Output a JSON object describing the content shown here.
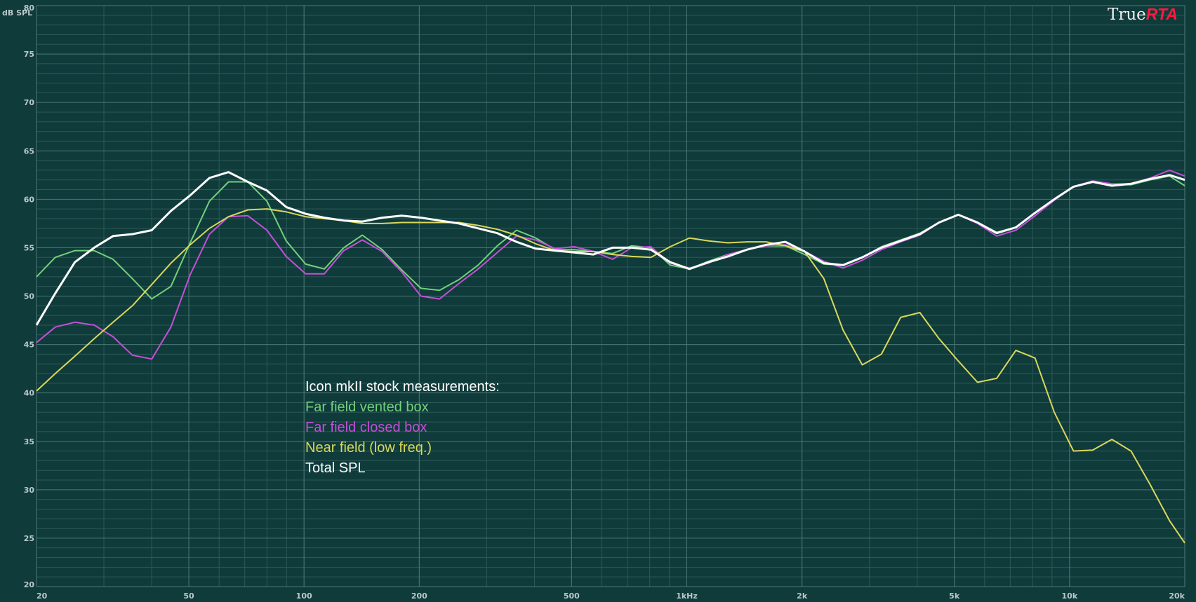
{
  "brand": {
    "prefix": "True",
    "suffix": "RTA",
    "suffix_color": "#ff1a3c"
  },
  "chart_data": {
    "type": "line",
    "xscale": "log",
    "xlim": [
      20,
      20000
    ],
    "ylim": [
      20,
      80
    ],
    "ylabel": "dB SPL",
    "x_ticks": [
      {
        "value": 20,
        "label": "20"
      },
      {
        "value": 50,
        "label": "50"
      },
      {
        "value": 100,
        "label": "100"
      },
      {
        "value": 200,
        "label": "200"
      },
      {
        "value": 500,
        "label": "500"
      },
      {
        "value": 1000,
        "label": "1kHz"
      },
      {
        "value": 2000,
        "label": "2k"
      },
      {
        "value": 5000,
        "label": "5k"
      },
      {
        "value": 10000,
        "label": "10k"
      },
      {
        "value": 20000,
        "label": "20k"
      }
    ],
    "y_ticks": [
      20,
      25,
      30,
      35,
      40,
      45,
      50,
      55,
      60,
      65,
      70,
      75,
      80
    ],
    "grid": true,
    "legend_title": "Icon mkII stock measurements:",
    "series": [
      {
        "name": "Far field vented box",
        "color": "#72d07a",
        "x": [
          20,
          22.4,
          25.2,
          28.3,
          31.7,
          35.6,
          40,
          44.9,
          50.4,
          56.6,
          63.5,
          71.3,
          80,
          89.8,
          101,
          113,
          127,
          142,
          160,
          180,
          202,
          226,
          254,
          285,
          320,
          359,
          403,
          453,
          508,
          570,
          640,
          718,
          806,
          905,
          1016,
          1140,
          1280,
          1437,
          1613,
          1810,
          2032,
          2281,
          2560,
          2873,
          3225,
          3620,
          4064,
          4561,
          5120,
          5747,
          6451,
          7241,
          8127,
          9123,
          10240,
          11494,
          12902,
          14482,
          16256,
          18246,
          20000
        ],
        "y": [
          52,
          54,
          54.7,
          54.7,
          53.8,
          51.8,
          49.7,
          51,
          55.5,
          59.8,
          61.8,
          61.8,
          59.8,
          55.7,
          53.3,
          52.8,
          55,
          56.3,
          54.8,
          52.7,
          50.8,
          50.6,
          51.7,
          53.2,
          55.2,
          56.8,
          56,
          54.8,
          54.8,
          54.6,
          54.4,
          55.2,
          55,
          53.2,
          52.8,
          53.6,
          54.3,
          54.8,
          55.2,
          55.2,
          54.3,
          53.3,
          53.2,
          54,
          55.1,
          55.8,
          56.5,
          57.6,
          58.4,
          57.6,
          56.6,
          57.1,
          58.6,
          60,
          61.3,
          61.8,
          61.5,
          61.5,
          62,
          62.4,
          61.4
        ]
      },
      {
        "name": "Far field closed box",
        "color": "#c44fd8",
        "x": [
          20,
          22.4,
          25.2,
          28.3,
          31.7,
          35.6,
          40,
          44.9,
          50.4,
          56.6,
          63.5,
          71.3,
          80,
          89.8,
          101,
          113,
          127,
          142,
          160,
          180,
          202,
          226,
          254,
          285,
          320,
          359,
          403,
          453,
          508,
          570,
          640,
          718,
          806,
          905,
          1016,
          1140,
          1280,
          1437,
          1613,
          1810,
          2032,
          2281,
          2560,
          2873,
          3225,
          3620,
          4064,
          4561,
          5120,
          5747,
          6451,
          7241,
          8127,
          9123,
          10240,
          11494,
          12902,
          14482,
          16256,
          18246,
          20000
        ],
        "y": [
          45.2,
          46.8,
          47.3,
          47,
          45.8,
          43.9,
          43.5,
          46.8,
          52.2,
          56.4,
          58.2,
          58.3,
          56.8,
          54.1,
          52.3,
          52.3,
          54.7,
          55.8,
          54.6,
          52.5,
          50,
          49.7,
          51.3,
          52.8,
          54.5,
          56.2,
          55.8,
          54.9,
          55.1,
          54.6,
          53.8,
          55,
          55.1,
          53.4,
          52.9,
          53.4,
          54.3,
          54.8,
          55.2,
          55.3,
          54.6,
          53.6,
          52.9,
          53.7,
          54.8,
          55.6,
          56.3,
          57.6,
          58.4,
          57.5,
          56.2,
          56.8,
          58.3,
          59.9,
          61.3,
          61.9,
          61.6,
          61.6,
          62.2,
          63,
          62.4
        ]
      },
      {
        "name": "Near field (low freq.)",
        "color": "#d9d85a",
        "x": [
          20,
          22.4,
          25.2,
          28.3,
          31.7,
          35.6,
          40,
          44.9,
          50.4,
          56.6,
          63.5,
          71.3,
          80,
          89.8,
          101,
          113,
          127,
          142,
          160,
          180,
          202,
          226,
          254,
          285,
          320,
          359,
          403,
          453,
          508,
          570,
          640,
          718,
          806,
          905,
          1016,
          1140,
          1280,
          1437,
          1613,
          1810,
          2032,
          2281,
          2560,
          2873,
          3225,
          3620,
          4064,
          4561,
          5120,
          5747,
          6451,
          7241,
          8127,
          9123,
          10240,
          11494,
          12902,
          14482,
          16256,
          18246,
          20000
        ],
        "y": [
          40.2,
          42,
          43.8,
          45.6,
          47.3,
          49,
          51.2,
          53.4,
          55.3,
          57,
          58.2,
          58.9,
          59,
          58.7,
          58.2,
          58,
          57.8,
          57.5,
          57.5,
          57.6,
          57.6,
          57.6,
          57.6,
          57.3,
          56.9,
          56.3,
          55.4,
          54.7,
          54.6,
          54.6,
          54.3,
          54.1,
          54,
          55.1,
          56,
          55.7,
          55.5,
          55.6,
          55.6,
          55.2,
          54.6,
          51.8,
          46.5,
          42.9,
          44,
          47.8,
          48.3,
          45.6,
          43.3,
          41.1,
          41.5,
          44.4,
          43.6,
          38,
          34,
          34.1,
          35.2,
          34,
          30.5,
          26.8,
          24.5
        ]
      },
      {
        "name": "Total SPL",
        "color": "#ffffff",
        "x": [
          20,
          22.4,
          25.2,
          28.3,
          31.7,
          35.6,
          40,
          44.9,
          50.4,
          56.6,
          63.5,
          71.3,
          80,
          89.8,
          101,
          113,
          127,
          142,
          160,
          180,
          202,
          226,
          254,
          285,
          320,
          359,
          403,
          453,
          508,
          570,
          640,
          718,
          806,
          905,
          1016,
          1140,
          1280,
          1437,
          1613,
          1810,
          2032,
          2281,
          2560,
          2873,
          3225,
          3620,
          4064,
          4561,
          5120,
          5747,
          6451,
          7241,
          8127,
          9123,
          10240,
          11494,
          12902,
          14482,
          16256,
          18246,
          20000
        ],
        "y": [
          47,
          50.3,
          53.5,
          55,
          56.2,
          56.4,
          56.8,
          58.8,
          60.4,
          62.2,
          62.8,
          61.8,
          60.9,
          59.2,
          58.5,
          58.1,
          57.8,
          57.7,
          58.1,
          58.3,
          58.1,
          57.8,
          57.5,
          57,
          56.5,
          55.6,
          54.9,
          54.7,
          54.5,
          54.3,
          55,
          55,
          54.8,
          53.5,
          52.8,
          53.5,
          54.1,
          54.8,
          55.3,
          55.6,
          54.6,
          53.4,
          53.2,
          54,
          55,
          55.7,
          56.4,
          57.6,
          58.4,
          57.6,
          56.5,
          57.1,
          58.6,
          60,
          61.3,
          61.8,
          61.4,
          61.6,
          62.1,
          62.5,
          62
        ]
      }
    ]
  }
}
